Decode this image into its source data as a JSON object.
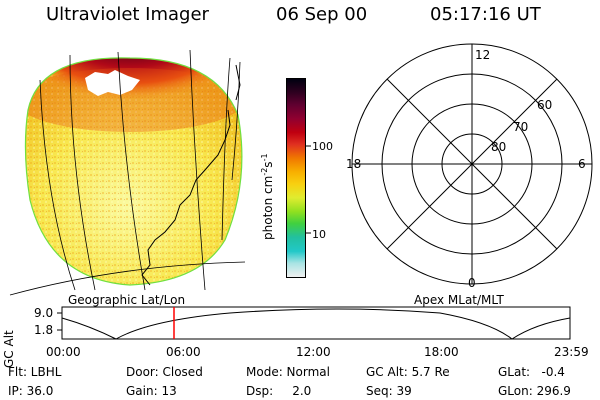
{
  "header": {
    "instrument": "Ultraviolet Imager",
    "date": "06 Sep 00",
    "time": "05:17:16 UT"
  },
  "colorbar": {
    "unit_label": "photon cm",
    "unit_exp": "-2",
    "unit_s": "s",
    "unit_s_exp": "-1",
    "ticks": [
      "100",
      "10"
    ],
    "colors": [
      "#f0f0f0",
      "#a8e4e4",
      "#22c8c8",
      "#22c0a0",
      "#40d040",
      "#90e020",
      "#e0ec30",
      "#f8d010",
      "#f8b000",
      "#f07800",
      "#e03020",
      "#c00010",
      "#900030",
      "#600030",
      "#300020",
      "#000010"
    ]
  },
  "polar": {
    "mlt_labels": [
      "12",
      "18",
      "6",
      "0"
    ],
    "lat_labels": [
      "60",
      "70",
      "80"
    ]
  },
  "map_labels": {
    "left": "Geographic Lat/Lon",
    "right": "Apex MLat/MLT"
  },
  "timeline": {
    "ylabel": "GC Alt",
    "y_ticks": [
      "9.0",
      "1.8"
    ],
    "x_ticks": [
      "00:00",
      "06:00",
      "12:00",
      "18:00",
      "23:59"
    ],
    "marker_color": "#ff0000"
  },
  "params": {
    "flt": "Flt: LBHL",
    "ip": "IP: 36.0",
    "door": "Door: Closed",
    "gain": "Gain: 13",
    "mode": "Mode: Normal",
    "dsp": "Dsp:     2.0",
    "gcalt": "GC Alt: 5.7 Re",
    "seq": "Seq: 39",
    "glat": "GLat:   -0.4",
    "glon": "GLon: 296.9"
  },
  "image_colors": {
    "oval_dark": "#1a0010",
    "oval_red": "#c01010",
    "oval_orange": "#f08010",
    "disk_yellow": "#f8e040",
    "disk_pale": "#fafa90",
    "limb_green": "#70e040"
  }
}
